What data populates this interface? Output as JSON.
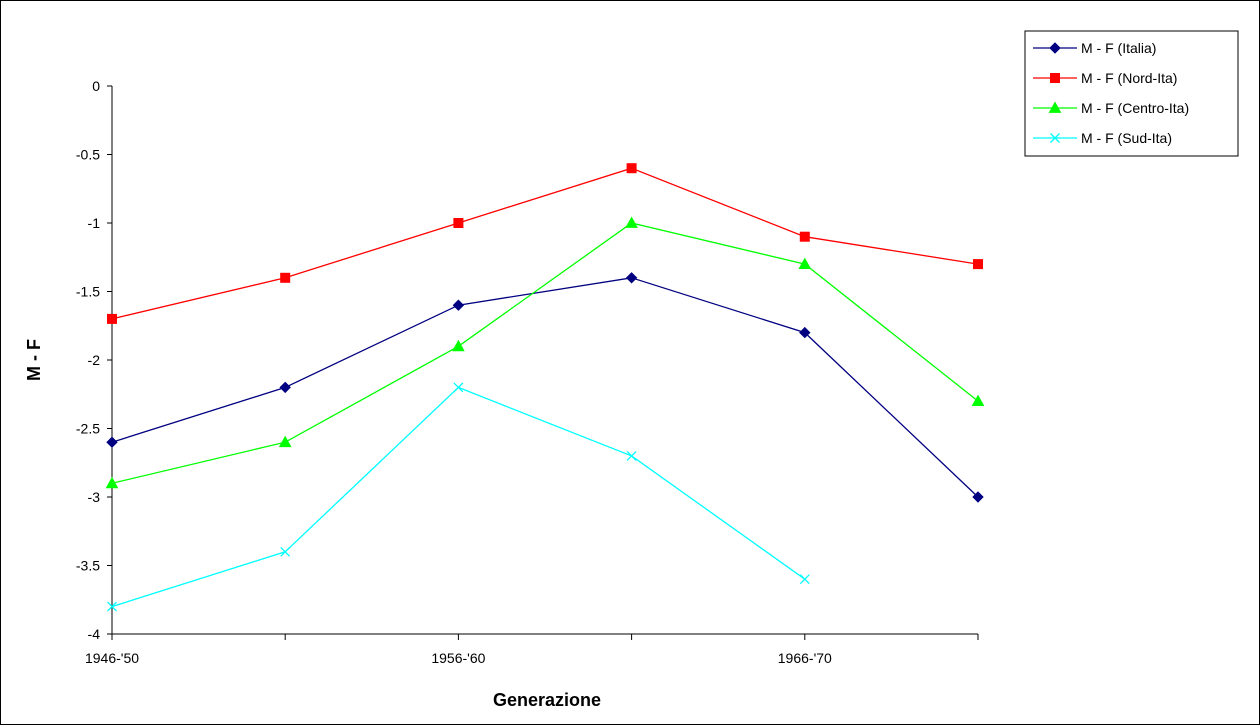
{
  "chart_data": {
    "type": "line",
    "title": "",
    "xlabel": "Generazione",
    "ylabel": "M - F",
    "categories": [
      "1946-'50",
      "",
      "1956-'60",
      "",
      "1966-'70",
      ""
    ],
    "ylim": [
      -4,
      0
    ],
    "yticks": [
      "0",
      "-0.5",
      "-1",
      "-1.5",
      "-2",
      "-2.5",
      "-3",
      "-3.5",
      "-4"
    ],
    "grid": false,
    "legend_position": "top-right",
    "series": [
      {
        "name": "M - F (Italia)",
        "color": "#000080",
        "marker": "diamond",
        "values": [
          -2.6,
          -2.2,
          -1.6,
          -1.4,
          -1.8,
          -3.0
        ]
      },
      {
        "name": "M - F (Nord-Ita)",
        "color": "#ff0000",
        "marker": "square",
        "values": [
          -1.7,
          -1.4,
          -1.0,
          -0.6,
          -1.1,
          -1.3
        ]
      },
      {
        "name": "M - F (Centro-Ita)",
        "color": "#00ff00",
        "marker": "triangle",
        "values": [
          -2.9,
          -2.6,
          -1.9,
          -1.0,
          -1.3,
          -2.3
        ]
      },
      {
        "name": "M - F (Sud-Ita)",
        "color": "#00ffff",
        "marker": "x",
        "values": [
          -3.8,
          -3.4,
          -2.2,
          -2.7,
          -3.6,
          null
        ]
      }
    ]
  }
}
